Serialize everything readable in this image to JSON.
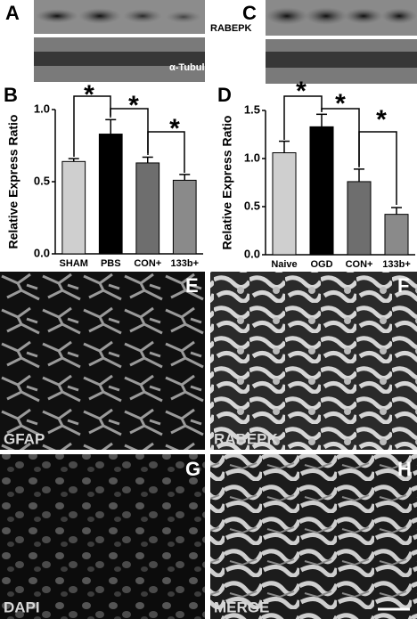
{
  "chart_data": [
    {
      "type": "bar",
      "y_label": "Relative Express Ratio",
      "categories": [
        "SHAM",
        "PBS",
        "CON+",
        "133b+"
      ],
      "values": [
        0.64,
        0.83,
        0.63,
        0.51
      ],
      "errors": [
        0.02,
        0.1,
        0.04,
        0.04
      ],
      "colors": [
        "#cfcfcf",
        "#000000",
        "#6e6e6e",
        "#8a8a8a"
      ],
      "ylim": [
        0,
        1
      ],
      "yticks": [
        {
          "value": 0,
          "label": "0.0"
        },
        0.5,
        {
          "value": 1,
          "label": "1.0"
        }
      ],
      "annotations": [
        "*",
        "*",
        "*"
      ]
    },
    {
      "type": "bar",
      "y_label": "Relative Express Ratio",
      "categories": [
        "Naive",
        "OGD",
        "CON+",
        "133b+"
      ],
      "values": [
        1.06,
        1.33,
        0.76,
        0.42
      ],
      "errors": [
        0.12,
        0.13,
        0.13,
        0.07
      ],
      "colors": [
        "#cfcfcf",
        "#000000",
        "#6e6e6e",
        "#8a8a8a"
      ],
      "ylim": [
        0,
        1.5
      ],
      "yticks": [
        {
          "value": 0,
          "label": "0.0"
        },
        0.5,
        {
          "value": 1,
          "label": "1.0"
        },
        1.5
      ],
      "annotations": [
        "*",
        "*",
        "*"
      ]
    }
  ],
  "panel_letters": [
    "A",
    "B",
    "C",
    "D",
    "E",
    "F",
    "G",
    "H"
  ],
  "blot_labels": [
    "RABEPK",
    "α-Tubulin"
  ],
  "stain_labels": [
    "GFAP",
    "RABEPK",
    "DAPI",
    "MERGE"
  ]
}
